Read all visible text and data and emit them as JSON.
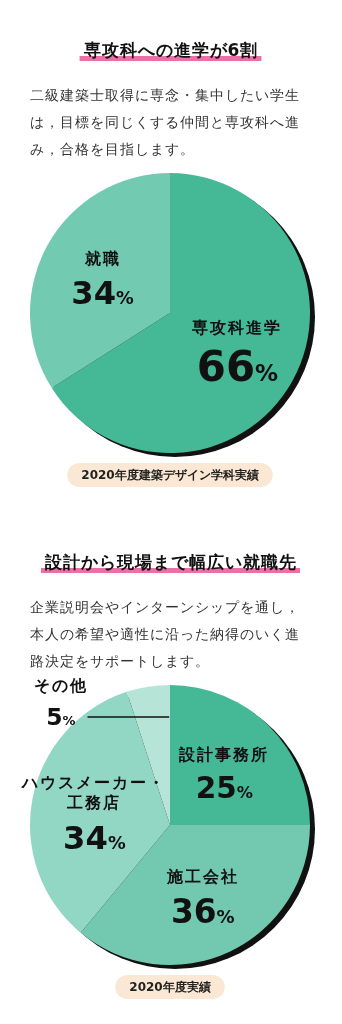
{
  "chart_data": [
    {
      "type": "pie",
      "title": "専攻科への進学が6割",
      "subtitle": "二級建築士取得に専念・集中したい学生は，目標を同じくする仲間と専攻科へ進み，合格を目指します。",
      "categories": [
        "専攻科進学",
        "就職"
      ],
      "values": [
        66,
        34
      ],
      "colors": [
        "#45b996",
        "#72cbb1"
      ],
      "value_labels": [
        "66%",
        "34%"
      ],
      "annotations": [
        "2020年度建築デザイン学科実績"
      ]
    },
    {
      "type": "pie",
      "title": "設計から現場まで幅広い就職先",
      "subtitle": "企業説明会やインターンシップを通し，本人の希望や適性に沿った納得のいく進路決定をサポートします。",
      "categories": [
        "設計事務所",
        "施工会社",
        "ハウスメーカー・工務店",
        "その他"
      ],
      "values": [
        25,
        36,
        34,
        5
      ],
      "colors": [
        "#45b996",
        "#72c9b0",
        "#92d7c3",
        "#b6e5d7"
      ],
      "value_labels": [
        "25%",
        "36%",
        "34%",
        "5%"
      ],
      "annotations": [
        "2020年度実績"
      ]
    }
  ]
}
